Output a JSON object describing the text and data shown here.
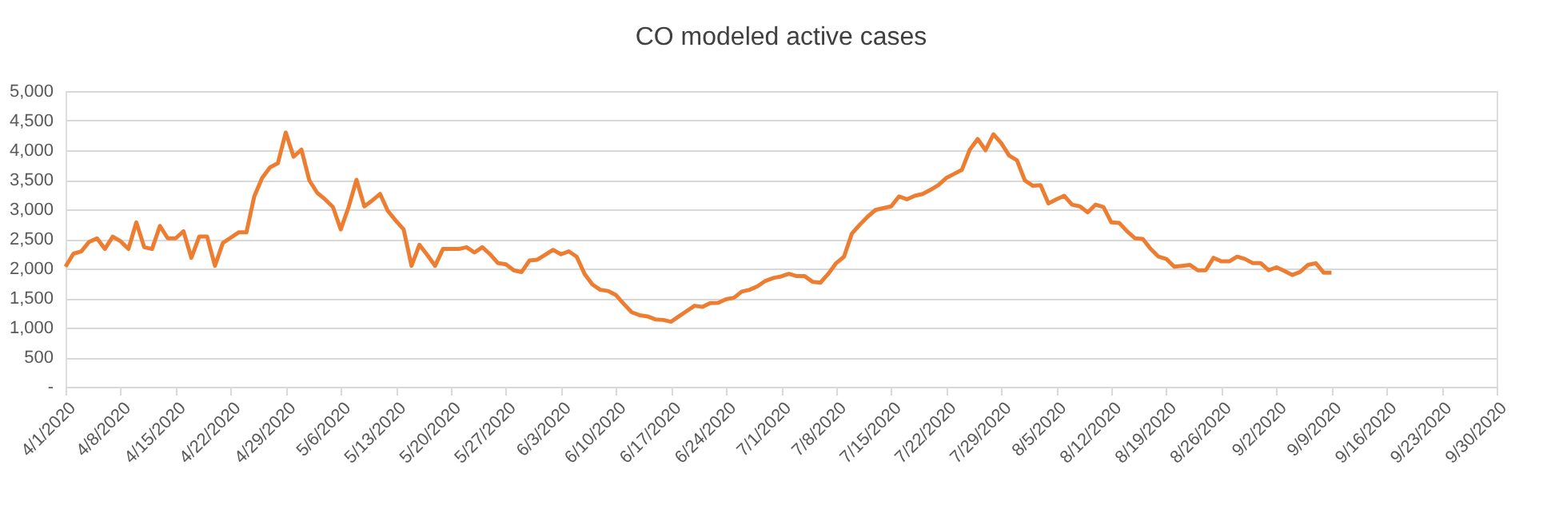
{
  "chart_data": {
    "type": "line",
    "title": "CO modeled active cases",
    "x": [
      "2020-04-01",
      "2020-04-02",
      "2020-04-03",
      "2020-04-04",
      "2020-04-05",
      "2020-04-06",
      "2020-04-07",
      "2020-04-08",
      "2020-04-09",
      "2020-04-10",
      "2020-04-11",
      "2020-04-12",
      "2020-04-13",
      "2020-04-14",
      "2020-04-15",
      "2020-04-16",
      "2020-04-17",
      "2020-04-18",
      "2020-04-19",
      "2020-04-20",
      "2020-04-21",
      "2020-04-22",
      "2020-04-23",
      "2020-04-24",
      "2020-04-25",
      "2020-04-26",
      "2020-04-27",
      "2020-04-28",
      "2020-04-29",
      "2020-04-30",
      "2020-05-01",
      "2020-05-02",
      "2020-05-03",
      "2020-05-04",
      "2020-05-05",
      "2020-05-06",
      "2020-05-07",
      "2020-05-08",
      "2020-05-09",
      "2020-05-10",
      "2020-05-11",
      "2020-05-12",
      "2020-05-13",
      "2020-05-14",
      "2020-05-15",
      "2020-05-16",
      "2020-05-17",
      "2020-05-18",
      "2020-05-19",
      "2020-05-20",
      "2020-05-21",
      "2020-05-22",
      "2020-05-23",
      "2020-05-24",
      "2020-05-25",
      "2020-05-26",
      "2020-05-27",
      "2020-05-28",
      "2020-05-29",
      "2020-05-30",
      "2020-05-31",
      "2020-06-01",
      "2020-06-02",
      "2020-06-03",
      "2020-06-04",
      "2020-06-05",
      "2020-06-06",
      "2020-06-07",
      "2020-06-08",
      "2020-06-09",
      "2020-06-10",
      "2020-06-11",
      "2020-06-12",
      "2020-06-13",
      "2020-06-14",
      "2020-06-15",
      "2020-06-16",
      "2020-06-17",
      "2020-06-18",
      "2020-06-19",
      "2020-06-20",
      "2020-06-21",
      "2020-06-22",
      "2020-06-23",
      "2020-06-24",
      "2020-06-25",
      "2020-06-26",
      "2020-06-27",
      "2020-06-28",
      "2020-06-29",
      "2020-06-30",
      "2020-07-01",
      "2020-07-02",
      "2020-07-03",
      "2020-07-04",
      "2020-07-05",
      "2020-07-06",
      "2020-07-07",
      "2020-07-08",
      "2020-07-09",
      "2020-07-10",
      "2020-07-11",
      "2020-07-12",
      "2020-07-13",
      "2020-07-14",
      "2020-07-15",
      "2020-07-16",
      "2020-07-17",
      "2020-07-18",
      "2020-07-19",
      "2020-07-20",
      "2020-07-21",
      "2020-07-22",
      "2020-07-23",
      "2020-07-24",
      "2020-07-25",
      "2020-07-26",
      "2020-07-27",
      "2020-07-28",
      "2020-07-29",
      "2020-07-30",
      "2020-07-31",
      "2020-08-01",
      "2020-08-02",
      "2020-08-03",
      "2020-08-04",
      "2020-08-05",
      "2020-08-06",
      "2020-08-07",
      "2020-08-08",
      "2020-08-09",
      "2020-08-10",
      "2020-08-11",
      "2020-08-12",
      "2020-08-13",
      "2020-08-14",
      "2020-08-15",
      "2020-08-16",
      "2020-08-17",
      "2020-08-18",
      "2020-08-19",
      "2020-08-20",
      "2020-08-21",
      "2020-08-22",
      "2020-08-23",
      "2020-08-24",
      "2020-08-25",
      "2020-08-26",
      "2020-08-27",
      "2020-08-28",
      "2020-08-29",
      "2020-08-30",
      "2020-08-31",
      "2020-09-01",
      "2020-09-02",
      "2020-09-03",
      "2020-09-04",
      "2020-09-05",
      "2020-09-06",
      "2020-09-07",
      "2020-09-08",
      "2020-09-09"
    ],
    "series": [
      {
        "color": "#ed7d31",
        "values": [
          2030,
          2250,
          2290,
          2450,
          2510,
          2330,
          2540,
          2460,
          2330,
          2780,
          2360,
          2330,
          2720,
          2510,
          2510,
          2630,
          2180,
          2540,
          2540,
          2045,
          2430,
          2520,
          2610,
          2610,
          3220,
          3530,
          3710,
          3780,
          4300,
          3890,
          4010,
          3490,
          3280,
          3170,
          3040,
          2660,
          3040,
          3500,
          3050,
          3150,
          3260,
          2970,
          2810,
          2660,
          2045,
          2400,
          2230,
          2045,
          2330,
          2330,
          2330,
          2360,
          2270,
          2360,
          2240,
          2090,
          2070,
          1970,
          1940,
          2135,
          2150,
          2230,
          2315,
          2240,
          2290,
          2200,
          1910,
          1730,
          1640,
          1620,
          1550,
          1400,
          1260,
          1210,
          1190,
          1140,
          1130,
          1100,
          1190,
          1280,
          1370,
          1350,
          1415,
          1420,
          1480,
          1505,
          1610,
          1640,
          1700,
          1790,
          1840,
          1865,
          1910,
          1870,
          1870,
          1775,
          1760,
          1910,
          2090,
          2200,
          2590,
          2740,
          2875,
          2990,
          3020,
          3050,
          3220,
          3170,
          3230,
          3260,
          3330,
          3410,
          3530,
          3600,
          3670,
          4010,
          4190,
          4000,
          4270,
          4120,
          3910,
          3830,
          3490,
          3400,
          3410,
          3100,
          3170,
          3230,
          3080,
          3050,
          2950,
          3080,
          3040,
          2780,
          2770,
          2630,
          2510,
          2500,
          2330,
          2200,
          2160,
          2030,
          2045,
          2060,
          1970,
          1970,
          2180,
          2120,
          2120,
          2200,
          2160,
          2090,
          2090,
          1970,
          2020,
          1960,
          1890,
          1940,
          2060,
          2090,
          1930,
          1930
        ]
      }
    ],
    "xlim": [
      "2020-04-01",
      "2020-09-30"
    ],
    "xticks": [
      {
        "value": "2020-04-01",
        "label": "4/1/2020"
      },
      {
        "value": "2020-04-08",
        "label": "4/8/2020"
      },
      {
        "value": "2020-04-15",
        "label": "4/15/2020"
      },
      {
        "value": "2020-04-22",
        "label": "4/22/2020"
      },
      {
        "value": "2020-04-29",
        "label": "4/29/2020"
      },
      {
        "value": "2020-05-06",
        "label": "5/6/2020"
      },
      {
        "value": "2020-05-13",
        "label": "5/13/2020"
      },
      {
        "value": "2020-05-20",
        "label": "5/20/2020"
      },
      {
        "value": "2020-05-27",
        "label": "5/27/2020"
      },
      {
        "value": "2020-06-03",
        "label": "6/3/2020"
      },
      {
        "value": "2020-06-10",
        "label": "6/10/2020"
      },
      {
        "value": "2020-06-17",
        "label": "6/17/2020"
      },
      {
        "value": "2020-06-24",
        "label": "6/24/2020"
      },
      {
        "value": "2020-07-01",
        "label": "7/1/2020"
      },
      {
        "value": "2020-07-08",
        "label": "7/8/2020"
      },
      {
        "value": "2020-07-15",
        "label": "7/15/2020"
      },
      {
        "value": "2020-07-22",
        "label": "7/22/2020"
      },
      {
        "value": "2020-07-29",
        "label": "7/29/2020"
      },
      {
        "value": "2020-08-05",
        "label": "8/5/2020"
      },
      {
        "value": "2020-08-12",
        "label": "8/12/2020"
      },
      {
        "value": "2020-08-19",
        "label": "8/19/2020"
      },
      {
        "value": "2020-08-26",
        "label": "8/26/2020"
      },
      {
        "value": "2020-09-02",
        "label": "9/2/2020"
      },
      {
        "value": "2020-09-09",
        "label": "9/9/2020"
      },
      {
        "value": "2020-09-16",
        "label": "9/16/2020"
      },
      {
        "value": "2020-09-23",
        "label": "9/23/2020"
      },
      {
        "value": "2020-09-30",
        "label": "9/30/2020"
      }
    ],
    "ylim": [
      0,
      5000
    ],
    "yticks": [
      {
        "value": 0,
        "label": "-"
      },
      500,
      {
        "value": 1000,
        "label": "1,000"
      },
      {
        "value": 1500,
        "label": "1,500"
      },
      {
        "value": 2000,
        "label": "2,000"
      },
      {
        "value": 2500,
        "label": "2,500"
      },
      {
        "value": 3000,
        "label": "3,000"
      },
      {
        "value": 3500,
        "label": "3,500"
      },
      {
        "value": 4000,
        "label": "4,000"
      },
      {
        "value": 4500,
        "label": "4,500"
      },
      {
        "value": 5000,
        "label": "5,000"
      }
    ],
    "grid": "y",
    "legend": false,
    "line_style": "solid",
    "marker": "none"
  }
}
